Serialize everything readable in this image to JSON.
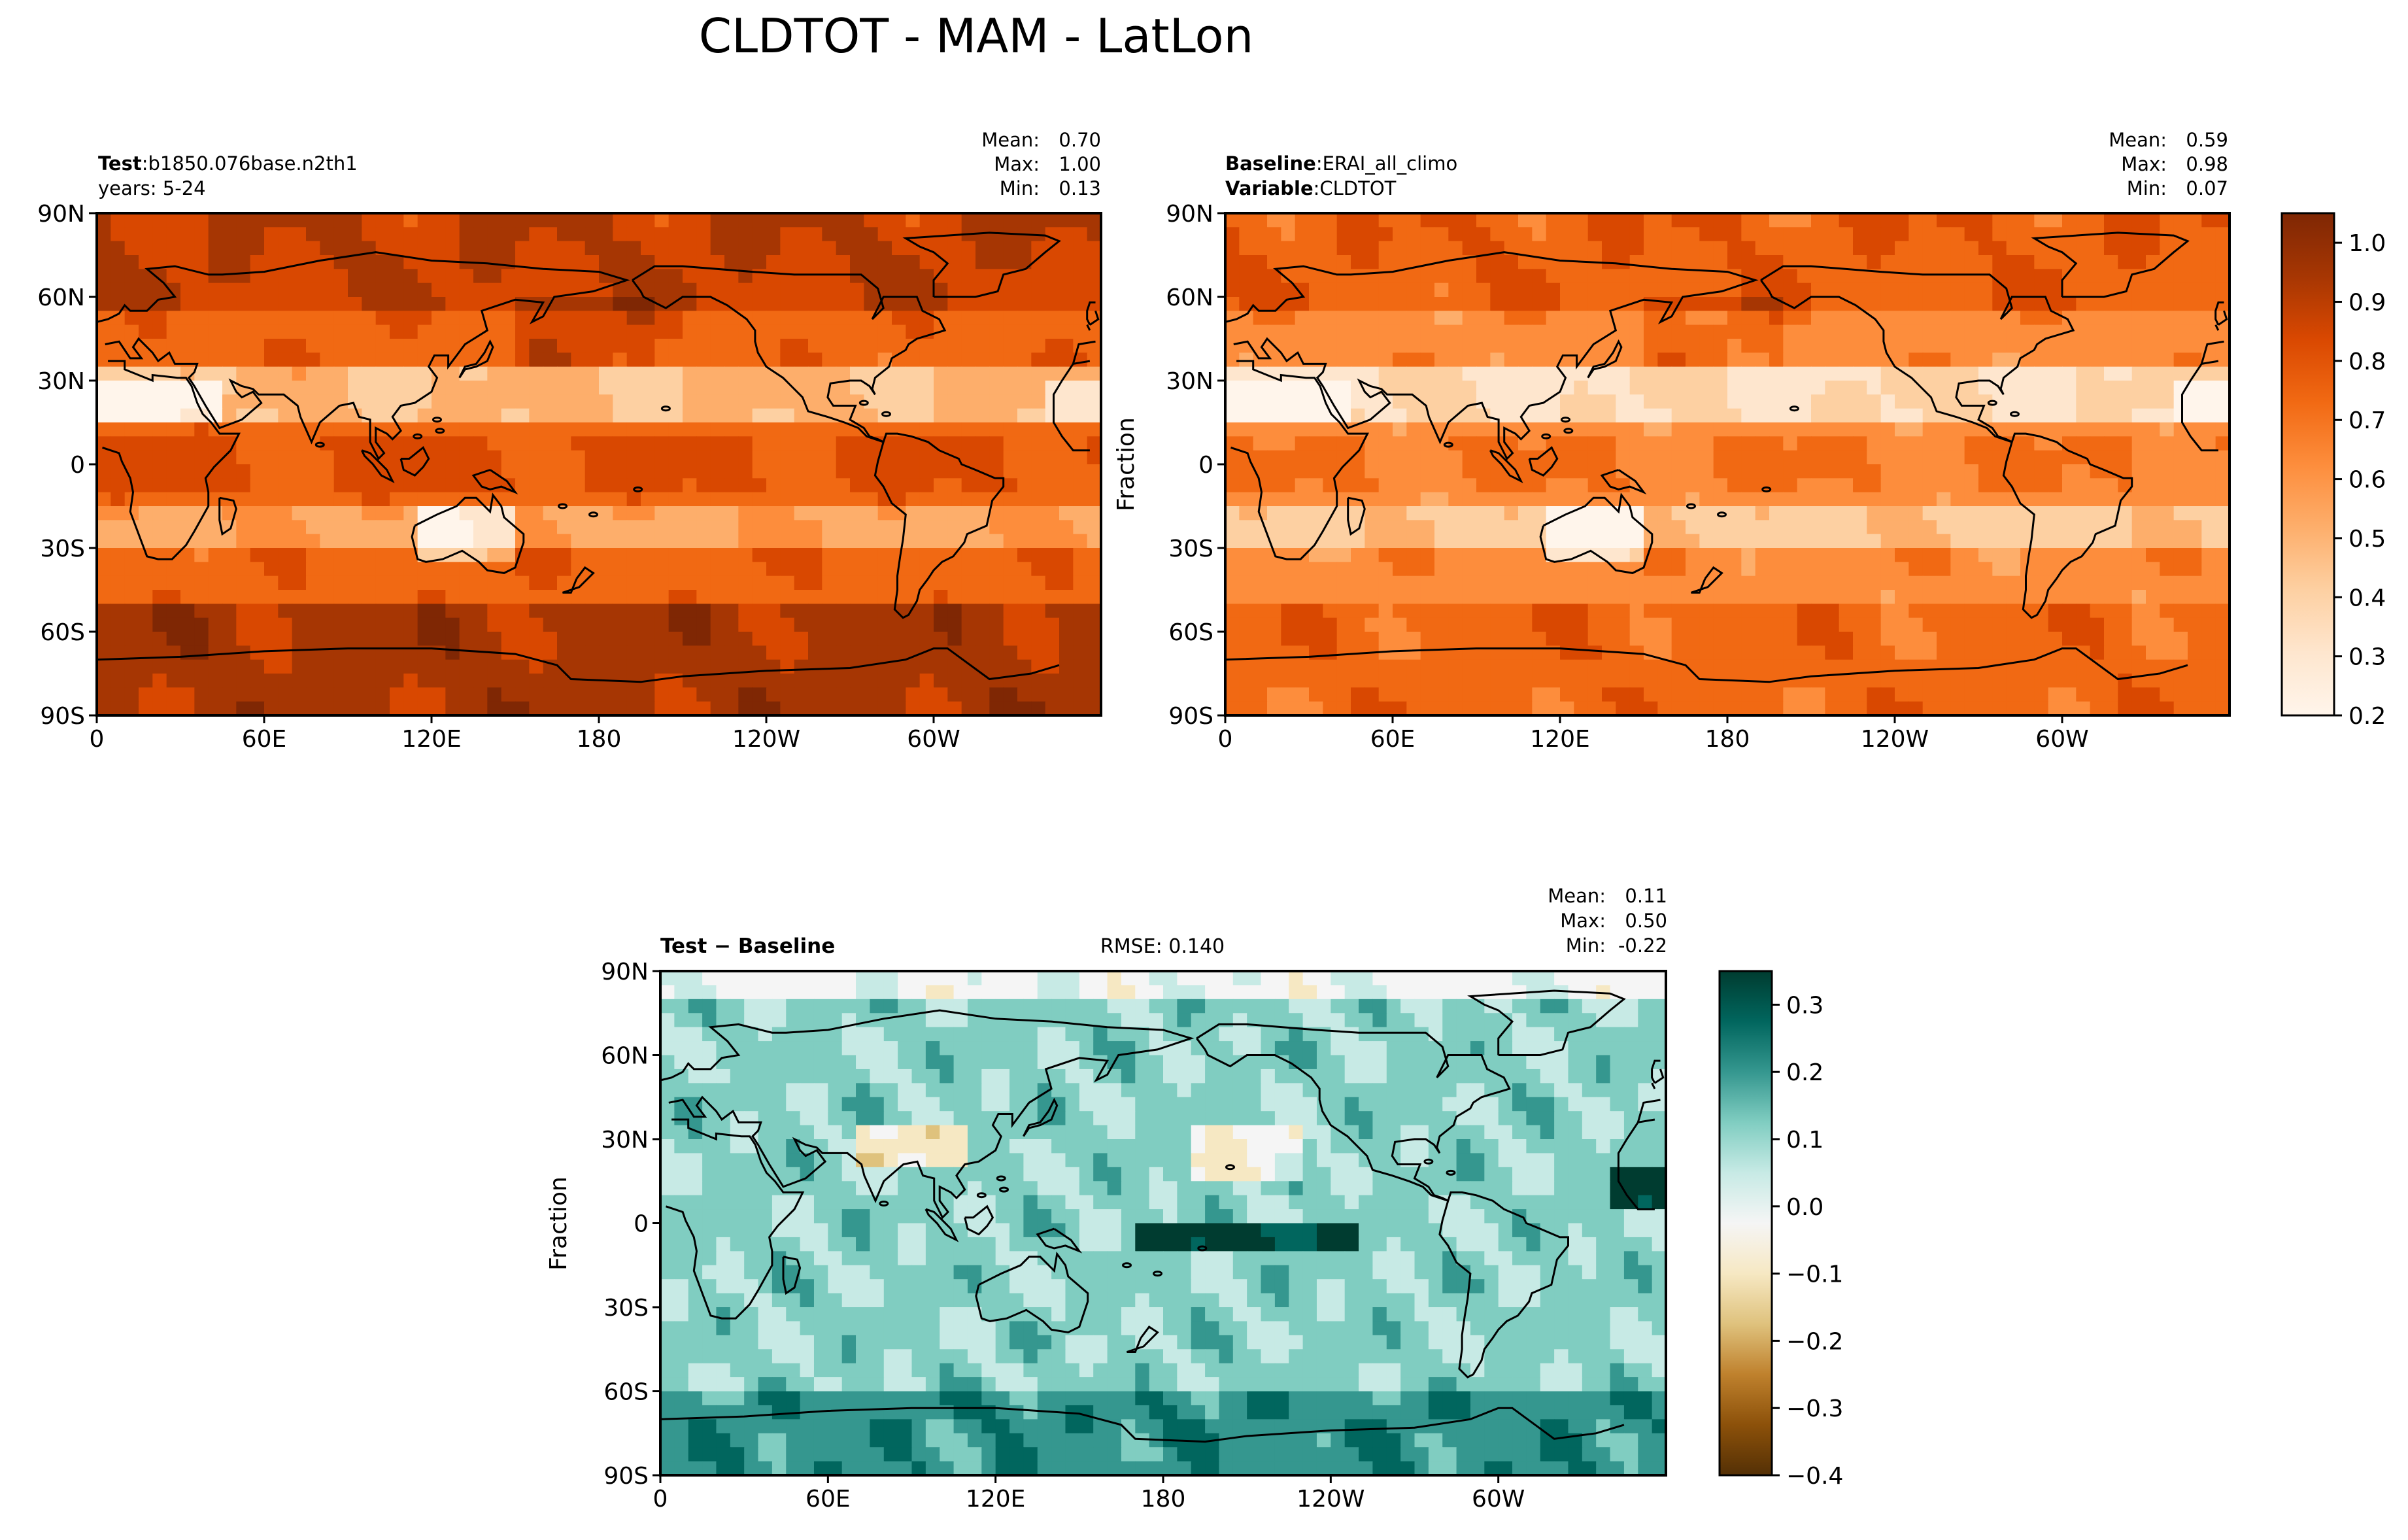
{
  "figure": {
    "title": "CLDTOT - MAM - LatLon"
  },
  "colors": {
    "test_baseline_scale": [
      "#fff5eb",
      "#fee6ce",
      "#fdd0a2",
      "#fdae6b",
      "#fd8d3c",
      "#f16913",
      "#d94801",
      "#a63603",
      "#7f2704"
    ],
    "diff_scale": [
      "#543005",
      "#8c510a",
      "#bf812d",
      "#dfc27d",
      "#f6e8c3",
      "#f5f5f5",
      "#c7eae5",
      "#80cdc1",
      "#35978f",
      "#01665e",
      "#003c30"
    ]
  },
  "chart_data": [
    {
      "type": "heatmap",
      "panel": "test",
      "label_bold": "Test",
      "label_sep": ":",
      "label_value": "b1850.076base.n2th1",
      "label_line2": "years: 5-24",
      "stats": {
        "mean_label": "Mean:",
        "mean": "0.70",
        "max_label": "Max:",
        "max": "1.00",
        "min_label": "Min:",
        "min": "0.13"
      },
      "x_ticks": [
        "0",
        "60E",
        "120E",
        "180",
        "120W",
        "60W"
      ],
      "y_ticks": [
        "90N",
        "60N",
        "30N",
        "0",
        "30S",
        "60S",
        "90S"
      ],
      "value_range": [
        0.13,
        1.0
      ]
    },
    {
      "type": "heatmap",
      "panel": "baseline",
      "label_bold": "Baseline",
      "label_sep": ":",
      "label_value": "ERAI_all_climo",
      "label2_bold": "Variable",
      "label2_value": "CLDTOT",
      "ylabel": "Fraction",
      "stats": {
        "mean_label": "Mean:",
        "mean": "0.59",
        "max_label": "Max:",
        "max": "0.98",
        "min_label": "Min:",
        "min": "0.07"
      },
      "x_ticks": [
        "0",
        "60E",
        "120E",
        "180",
        "120W",
        "60W"
      ],
      "y_ticks": [
        "90N",
        "60N",
        "30N",
        "0",
        "30S",
        "60S",
        "90S"
      ],
      "colorbar": {
        "range": [
          0.2,
          1.05
        ],
        "ticks": [
          "1.0",
          "0.9",
          "0.8",
          "0.7",
          "0.6",
          "0.5",
          "0.4",
          "0.3",
          "0.2"
        ],
        "tick_values": [
          1.0,
          0.9,
          0.8,
          0.7,
          0.6,
          0.5,
          0.4,
          0.3,
          0.2
        ]
      }
    },
    {
      "type": "heatmap",
      "panel": "diff",
      "label": "Test − Baseline",
      "rmse": "RMSE: 0.140",
      "ylabel": "Fraction",
      "stats": {
        "mean_label": "Mean:",
        "mean": "0.11",
        "max_label": "Max:",
        "max": "0.50",
        "min_label": "Min:",
        "min": "-0.22"
      },
      "x_ticks": [
        "0",
        "60E",
        "120E",
        "180",
        "120W",
        "60W"
      ],
      "y_ticks": [
        "90N",
        "60N",
        "30N",
        "0",
        "30S",
        "60S",
        "90S"
      ],
      "colorbar": {
        "range": [
          -0.4,
          0.35
        ],
        "ticks": [
          "0.3",
          "0.2",
          "0.1",
          "0.0",
          "−0.1",
          "−0.2",
          "−0.3",
          "−0.4"
        ],
        "tick_values": [
          0.3,
          0.2,
          0.1,
          0.0,
          -0.1,
          -0.2,
          -0.3,
          -0.4
        ]
      }
    }
  ]
}
